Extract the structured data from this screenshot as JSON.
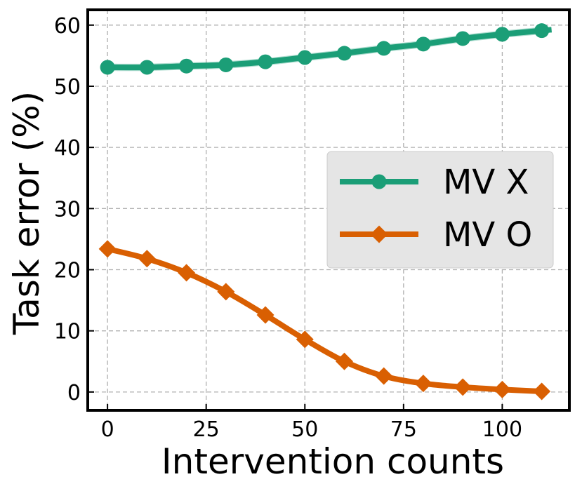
{
  "chart_data": {
    "type": "line",
    "xlabel": "Intervention counts",
    "ylabel": "Task error (%)",
    "xlim": [
      -5,
      117
    ],
    "ylim": [
      -3,
      62.5
    ],
    "xticks": [
      0,
      25,
      50,
      75,
      100
    ],
    "yticks": [
      0,
      10,
      20,
      30,
      40,
      50,
      60
    ],
    "xtick_labels": [
      "0",
      "25",
      "50",
      "75",
      "100"
    ],
    "ytick_labels": [
      "0",
      "10",
      "20",
      "30",
      "40",
      "50",
      "60"
    ],
    "grid": true,
    "legend_position": "center-right",
    "x": [
      0,
      10,
      20,
      30,
      40,
      50,
      60,
      70,
      80,
      90,
      100,
      110
    ],
    "series": [
      {
        "name": "MV X",
        "color": "#1b9e77",
        "marker": "circle",
        "values": [
          53.1,
          53.1,
          53.3,
          53.5,
          54.0,
          54.7,
          55.4,
          56.2,
          56.9,
          57.8,
          58.5,
          59.1
        ],
        "band": 0.6
      },
      {
        "name": "MV O",
        "color": "#d95f02",
        "marker": "diamond",
        "values": [
          23.4,
          21.8,
          19.5,
          16.4,
          12.6,
          8.6,
          5.0,
          2.6,
          1.4,
          0.8,
          0.4,
          0.1
        ]
      }
    ]
  }
}
